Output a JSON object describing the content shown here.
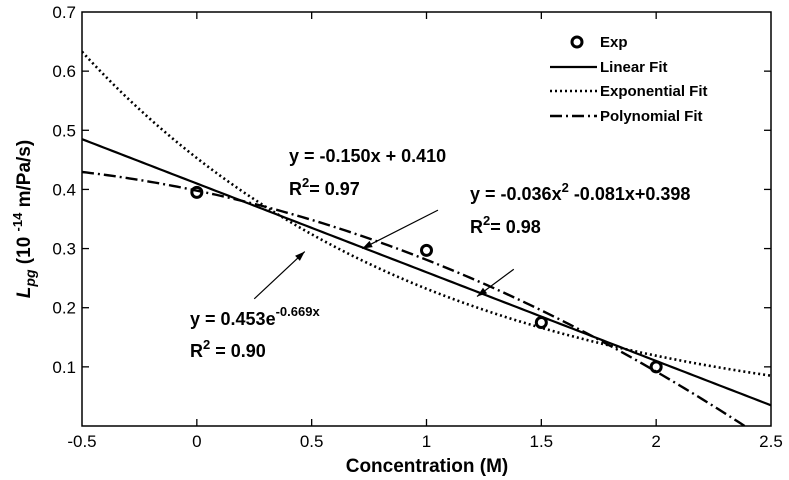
{
  "chart_data": {
    "type": "scatter",
    "xlabel": "Concentration (M)",
    "ylabel": {
      "main": "L",
      "sub": "pg",
      "rest_before_sup": " (10 ",
      "sup": "-14",
      "rest_after_sup": " m/Pa/s)"
    },
    "xlim": [
      -0.5,
      2.5
    ],
    "ylim": [
      0,
      0.7
    ],
    "x_ticks": [
      "-0.5",
      "0",
      "0.5",
      "1",
      "1.5",
      "2",
      "2.5"
    ],
    "y_ticks": [
      "0.1",
      "0.2",
      "0.3",
      "0.4",
      "0.5",
      "0.6",
      "0.7"
    ],
    "grid": false,
    "legend_position": "top-right",
    "series": [
      {
        "name": "Exp",
        "kind": "markers",
        "marker": "open-circle",
        "points": [
          {
            "x": 0,
            "y": 0.395
          },
          {
            "x": 1,
            "y": 0.297
          },
          {
            "x": 1.5,
            "y": 0.175
          },
          {
            "x": 2,
            "y": 0.1
          }
        ]
      },
      {
        "name": "Linear Fit",
        "kind": "line",
        "dash": "solid",
        "equation": {
          "a": -0.15,
          "b": 0.41
        }
      },
      {
        "name": "Exponential Fit",
        "kind": "line",
        "dash": "dotted",
        "equation": {
          "A": 0.453,
          "k": -0.669
        }
      },
      {
        "name": "Polynomial Fit",
        "kind": "line",
        "dash": "dashdot",
        "equation": {
          "a2": -0.036,
          "a1": -0.081,
          "a0": 0.398
        }
      }
    ],
    "annotations": {
      "linear": {
        "eq": "y = -0.150x + 0.410",
        "r2_prefix": "R",
        "r2_sup": "2",
        "r2_rest": "= 0.97"
      },
      "exponential": {
        "eq_prefix": "y = 0.453e",
        "eq_sup": "-0.669x",
        "r2_prefix": "R",
        "r2_sup": "2",
        "r2_rest": " = 0.90"
      },
      "polynomial": {
        "eq_prefix": "y = -0.036x",
        "eq_sup": "2",
        "eq_rest": " -0.081x+0.398",
        "r2_prefix": "R",
        "r2_sup": "2",
        "r2_rest": "= 0.98"
      }
    }
  }
}
